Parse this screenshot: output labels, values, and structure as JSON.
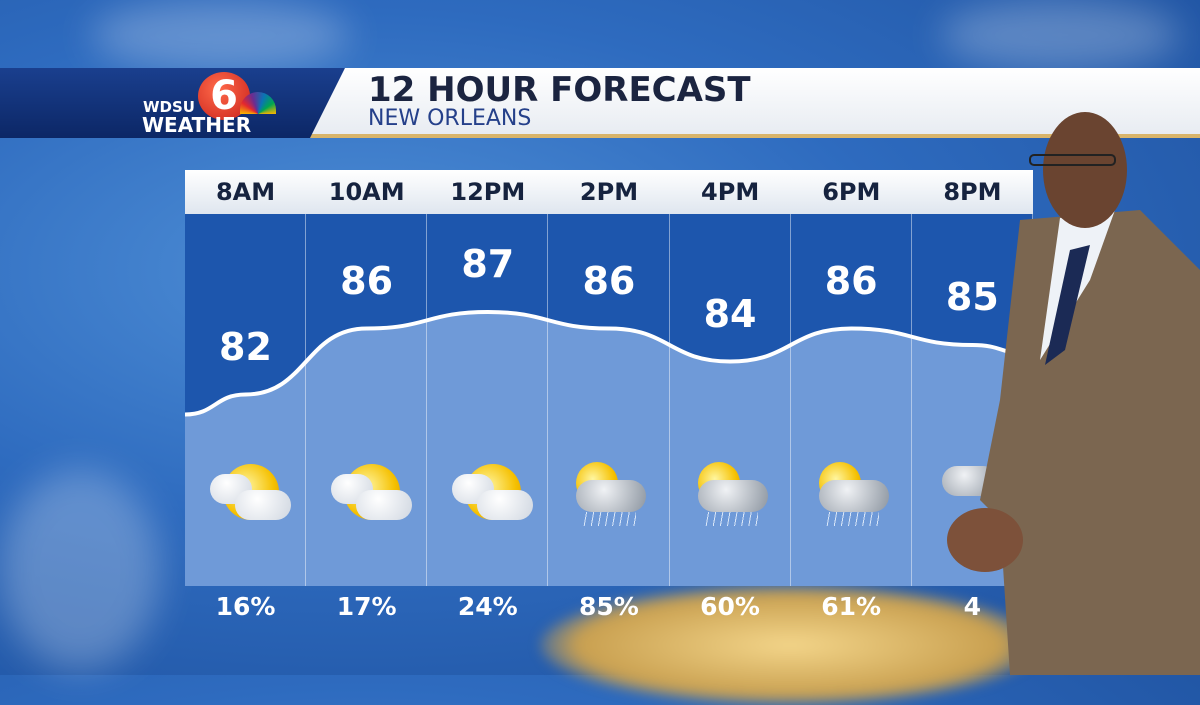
{
  "branding": {
    "station": "WDSU",
    "channel": "6",
    "brand": "WEATHER"
  },
  "header": {
    "title": "12 HOUR FORECAST",
    "location": "NEW ORLEANS"
  },
  "forecast": [
    {
      "time": "8AM",
      "temp": "82",
      "temp_value": 82,
      "icon": "partly-sunny",
      "precip": "16%"
    },
    {
      "time": "10AM",
      "temp": "86",
      "temp_value": 86,
      "icon": "partly-sunny",
      "precip": "17%"
    },
    {
      "time": "12PM",
      "temp": "87",
      "temp_value": 87,
      "icon": "partly-sunny",
      "precip": "24%"
    },
    {
      "time": "2PM",
      "temp": "86",
      "temp_value": 86,
      "icon": "sun-and-rain-cloud",
      "precip": "85%"
    },
    {
      "time": "4PM",
      "temp": "84",
      "temp_value": 84,
      "icon": "sun-and-rain-cloud",
      "precip": "60%"
    },
    {
      "time": "6PM",
      "temp": "86",
      "temp_value": 86,
      "icon": "sun-and-rain-cloud",
      "precip": "61%"
    },
    {
      "time": "8PM",
      "temp": "85",
      "temp_value": 85,
      "icon": "cloudy-rain",
      "precip": "4"
    }
  ],
  "colors": {
    "panel_top": "#1d56ad",
    "panel_fill": "#6f9ad8",
    "title": "#1b2440",
    "accent_gold": "#d8b46a",
    "logo_red": "#c8201a"
  }
}
